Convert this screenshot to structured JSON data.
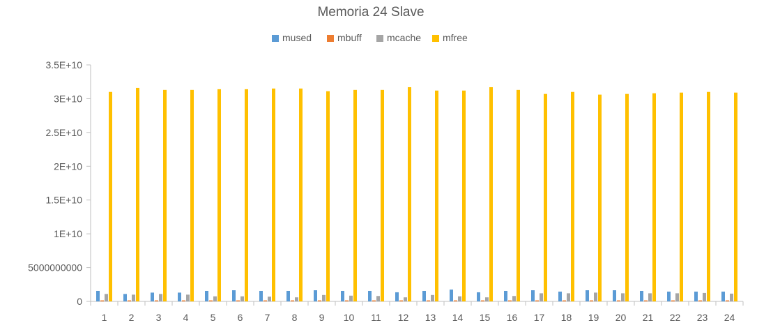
{
  "chart_data": {
    "type": "bar",
    "title": "Memoria 24 Slave",
    "xlabel": "",
    "ylabel": "",
    "ylim": [
      0,
      35000000000
    ],
    "yticks": [
      0,
      5000000000,
      10000000000,
      15000000000,
      20000000000,
      25000000000,
      30000000000,
      35000000000
    ],
    "ytick_labels": [
      "0",
      "5000000000",
      "1E+10",
      "1.5E+10",
      "2E+10",
      "2.5E+10",
      "3E+10",
      "3.5E+10"
    ],
    "grid": false,
    "legend_position": "top-center",
    "categories": [
      "1",
      "2",
      "3",
      "4",
      "5",
      "6",
      "7",
      "8",
      "9",
      "10",
      "11",
      "12",
      "13",
      "14",
      "15",
      "16",
      "17",
      "18",
      "19",
      "20",
      "21",
      "22",
      "23",
      "24"
    ],
    "series": [
      {
        "name": "mused",
        "color": "#5B9BD5",
        "values": [
          1550000000,
          1100000000,
          1300000000,
          1300000000,
          1550000000,
          1650000000,
          1550000000,
          1550000000,
          1650000000,
          1550000000,
          1550000000,
          1350000000,
          1550000000,
          1750000000,
          1350000000,
          1550000000,
          1650000000,
          1450000000,
          1650000000,
          1650000000,
          1550000000,
          1450000000,
          1450000000,
          1450000000
        ]
      },
      {
        "name": "mbuff",
        "color": "#ED7D31",
        "values": [
          150000000,
          150000000,
          150000000,
          150000000,
          150000000,
          150000000,
          150000000,
          150000000,
          150000000,
          150000000,
          150000000,
          150000000,
          150000000,
          150000000,
          150000000,
          150000000,
          150000000,
          150000000,
          150000000,
          150000000,
          150000000,
          150000000,
          150000000,
          150000000
        ]
      },
      {
        "name": "mcache",
        "color": "#A5A5A5",
        "values": [
          1100000000,
          1000000000,
          1100000000,
          1000000000,
          750000000,
          750000000,
          700000000,
          600000000,
          950000000,
          850000000,
          800000000,
          600000000,
          950000000,
          750000000,
          600000000,
          800000000,
          1200000000,
          1200000000,
          1300000000,
          1200000000,
          1200000000,
          1200000000,
          1250000000,
          1150000000
        ]
      },
      {
        "name": "mfree",
        "color": "#FFC000",
        "values": [
          31000000000,
          31600000000,
          31300000000,
          31300000000,
          31400000000,
          31400000000,
          31500000000,
          31500000000,
          31100000000,
          31300000000,
          31300000000,
          31700000000,
          31200000000,
          31200000000,
          31700000000,
          31300000000,
          30700000000,
          31000000000,
          30600000000,
          30700000000,
          30800000000,
          30900000000,
          31000000000,
          30900000000
        ]
      }
    ]
  }
}
